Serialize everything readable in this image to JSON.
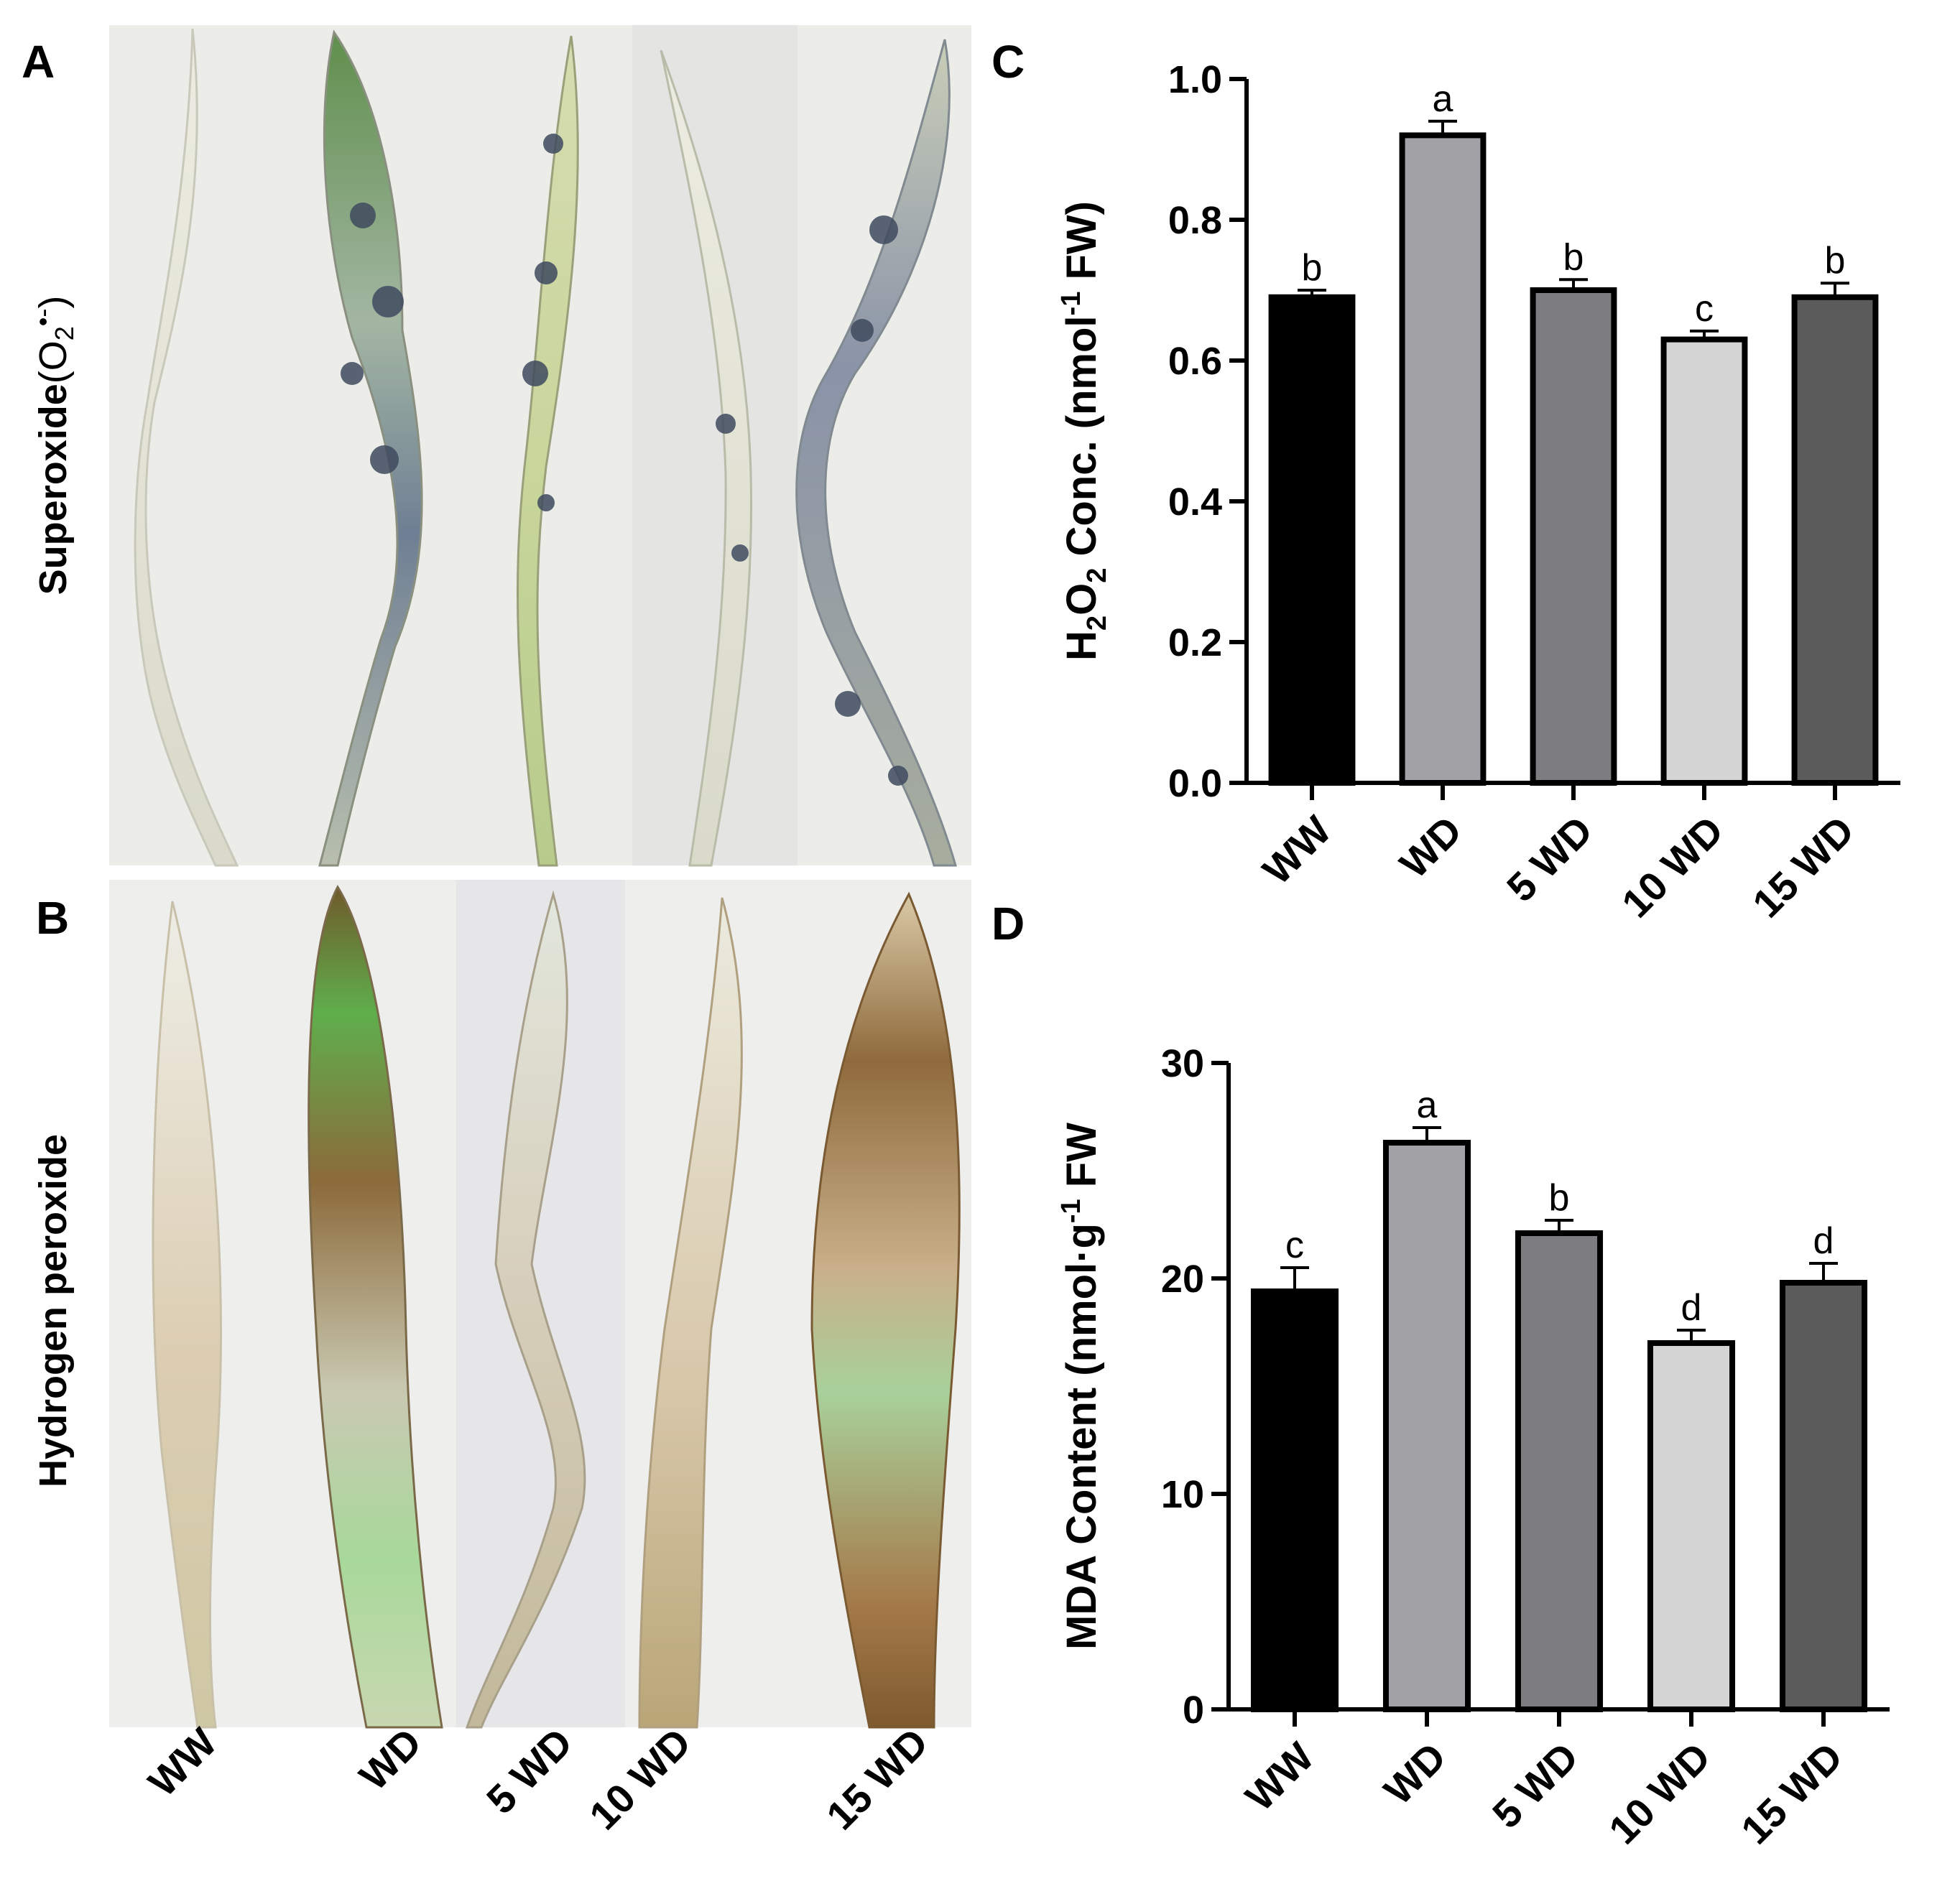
{
  "panels": {
    "a_letter": "A",
    "b_letter": "B",
    "c_letter": "C",
    "d_letter": "D"
  },
  "photo": {
    "row_a_label_main": "Superoxide",
    "row_a_label_open": "(O",
    "row_a_label_sub": "2",
    "row_a_label_sup": "•-",
    "row_a_label_close": ")",
    "row_b_label": "Hydrogen peroxide",
    "categories": [
      "WW",
      "WD",
      "5 WD",
      "10 WD",
      "15 WD"
    ]
  },
  "colors": {
    "WW": "#000000",
    "WD": "#a2a2a6",
    "5 WD": "#7d7d7f",
    "10 WD": "#d4d4d4",
    "15 WD": "#5b5b5b"
  },
  "chart_data": [
    {
      "type": "bar",
      "panel": "C",
      "categories": [
        "WW",
        "WD",
        "5 WD",
        "10 WD",
        "15 WD"
      ],
      "values": [
        0.69,
        0.92,
        0.7,
        0.63,
        0.69
      ],
      "errors": [
        0.01,
        0.02,
        0.015,
        0.012,
        0.02
      ],
      "significance": [
        "b",
        "a",
        "b",
        "c",
        "b"
      ],
      "ylabel_parts": [
        "H",
        "2",
        "O",
        "2",
        " Conc. (nmol",
        "-1",
        " FW)"
      ],
      "ylim": [
        0,
        1.0
      ],
      "yticks": [
        "0.0",
        "0.2",
        "0.4",
        "0.6",
        "0.8",
        "1.0"
      ]
    },
    {
      "type": "bar",
      "panel": "D",
      "categories": [
        "WW",
        "WD",
        "5 WD",
        "10 WD",
        "15 WD"
      ],
      "values": [
        19.4,
        26.3,
        22.1,
        17.0,
        19.8
      ],
      "errors": [
        1.1,
        0.7,
        0.6,
        0.6,
        0.9
      ],
      "significance": [
        "c",
        "a",
        "b",
        "d",
        "d"
      ],
      "ylabel_parts": [
        "MDA Content (nmol·g",
        "-1",
        " FW"
      ],
      "ylim": [
        0,
        30
      ],
      "yticks": [
        "0",
        "10",
        "20",
        "30"
      ]
    }
  ]
}
